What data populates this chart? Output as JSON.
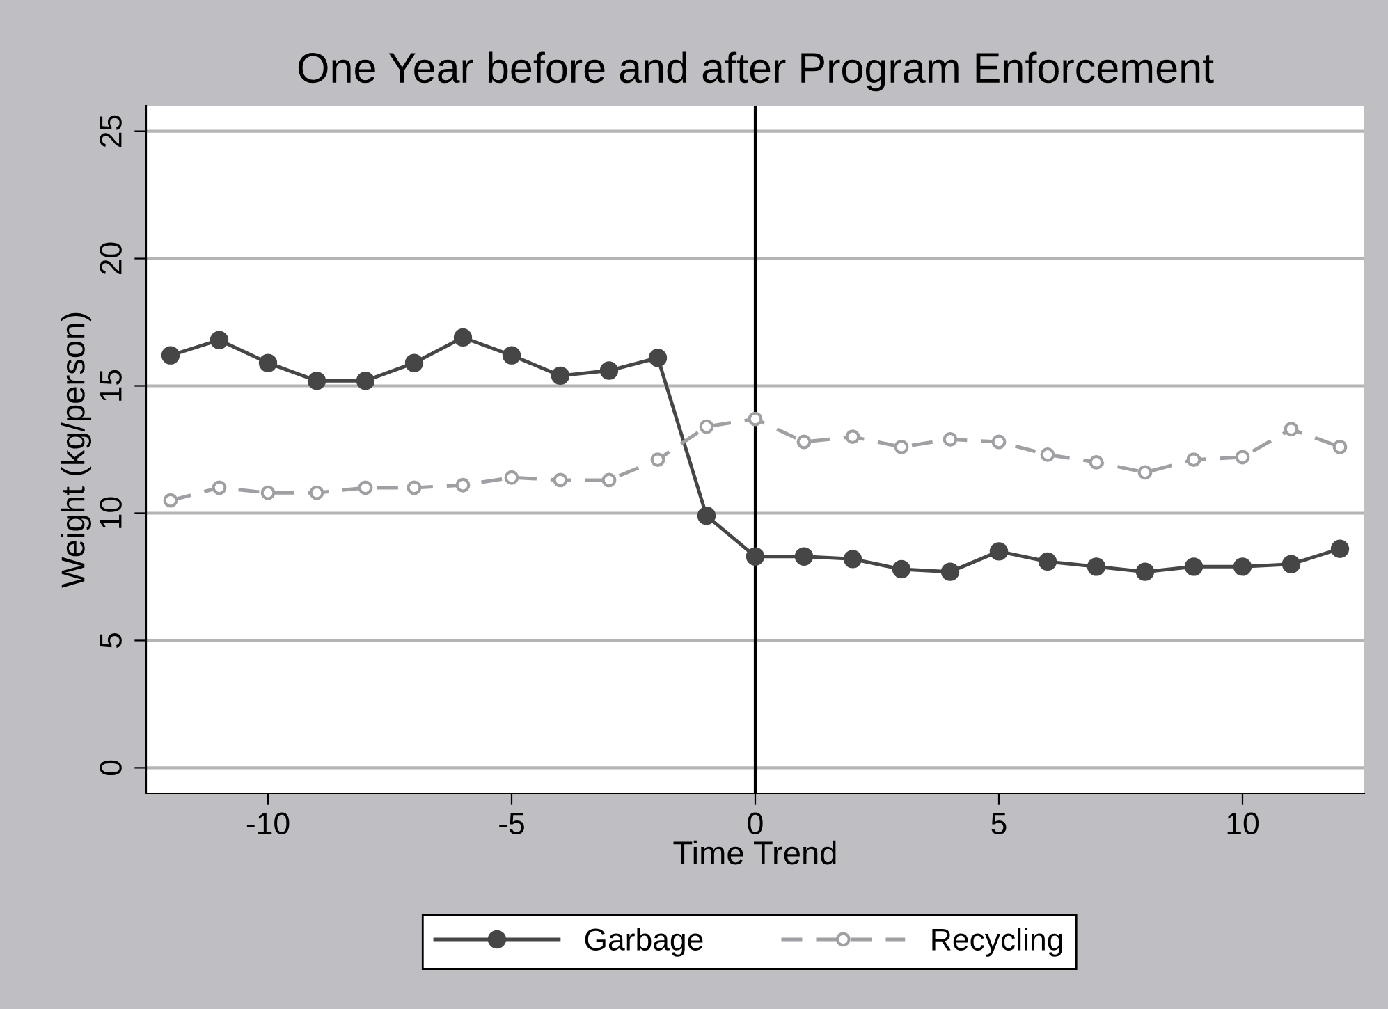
{
  "chart_data": {
    "type": "line",
    "title": "One Year before and after Program Enforcement",
    "xlabel": "Time Trend",
    "ylabel": "Weight (kg/person)",
    "x": [
      -12,
      -11,
      -10,
      -9,
      -8,
      -7,
      -6,
      -5,
      -4,
      -3,
      -2,
      -1,
      0,
      1,
      2,
      3,
      4,
      5,
      6,
      7,
      8,
      9,
      10,
      11,
      12
    ],
    "series": [
      {
        "name": "Garbage",
        "color": "#464646",
        "marker": "circle",
        "line_style": "solid",
        "values": [
          16.2,
          16.8,
          15.9,
          15.2,
          15.2,
          15.9,
          16.9,
          16.2,
          15.4,
          15.6,
          16.1,
          9.9,
          8.3,
          8.3,
          8.2,
          7.8,
          7.7,
          8.5,
          8.1,
          7.9,
          7.7,
          7.9,
          7.9,
          8.0,
          8.6
        ]
      },
      {
        "name": "Recycling",
        "color": "#a0a0a4",
        "marker": "circle",
        "line_style": "dashed",
        "values": [
          10.5,
          11.0,
          10.8,
          10.8,
          11.0,
          11.0,
          11.1,
          11.4,
          11.3,
          11.3,
          12.1,
          13.4,
          13.7,
          12.8,
          13.0,
          12.6,
          12.9,
          12.8,
          12.3,
          12.0,
          11.6,
          12.1,
          12.2,
          13.3,
          12.6
        ]
      }
    ],
    "xlim": [
      -12.5,
      12.5
    ],
    "ylim": [
      -1,
      26
    ],
    "xticks": [
      -10,
      -5,
      0,
      5,
      10
    ],
    "yticks": [
      0,
      5,
      10,
      15,
      20,
      25
    ],
    "ref_lines": [
      {
        "axis": "x",
        "value": 0,
        "color": "#000000"
      }
    ],
    "grid": "y",
    "legend": "bottom"
  }
}
